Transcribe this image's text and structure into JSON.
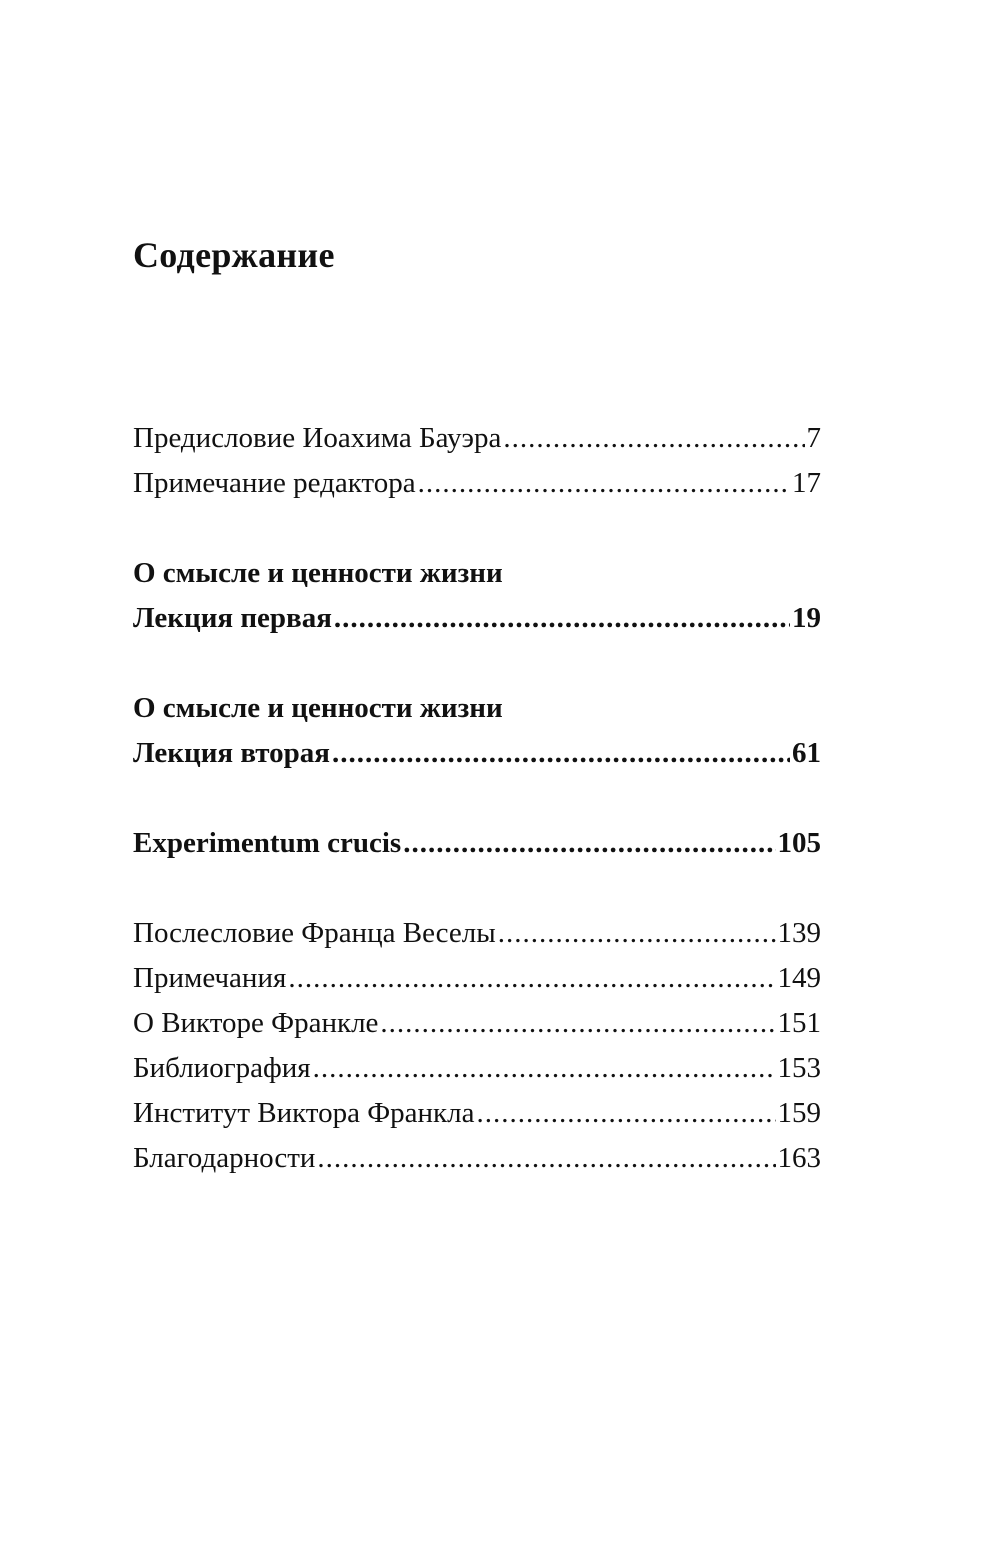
{
  "title": "Содержание",
  "groups": [
    {
      "entries": [
        {
          "heading": "",
          "label": "Предисловие Иоахима Бауэра",
          "page": "7",
          "bold": false
        },
        {
          "heading": "",
          "label": "Примечание редактора",
          "page": "17",
          "bold": false
        }
      ]
    },
    {
      "entries": [
        {
          "heading": "О смысле и ценности жизни",
          "label": "Лекция первая",
          "page": "19",
          "bold": true
        }
      ]
    },
    {
      "entries": [
        {
          "heading": "О смысле и ценности жизни",
          "label": "Лекция вторая",
          "page": "61",
          "bold": true
        }
      ]
    },
    {
      "entries": [
        {
          "heading": "",
          "label": "Experimentum crucis",
          "page": "105",
          "bold": true
        }
      ]
    },
    {
      "entries": [
        {
          "heading": "",
          "label": "Послесловие Франца Веселы",
          "page": "139",
          "bold": false
        },
        {
          "heading": "",
          "label": "Примечания",
          "page": "149",
          "bold": false
        },
        {
          "heading": "",
          "label": "О Викторе Франкле",
          "page": "151",
          "bold": false
        },
        {
          "heading": "",
          "label": "Библиография",
          "page": "153",
          "bold": false
        },
        {
          "heading": "",
          "label": "Институт Виктора Франкла",
          "page": "159",
          "bold": false
        },
        {
          "heading": "",
          "label": "Благодарности",
          "page": "163",
          "bold": false
        }
      ]
    }
  ]
}
